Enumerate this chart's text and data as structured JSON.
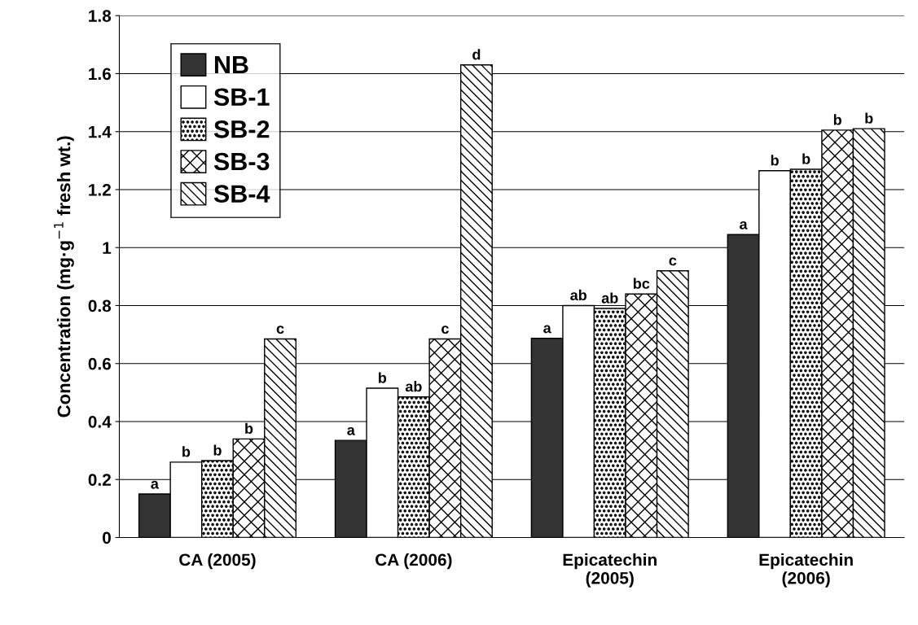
{
  "chart_data": {
    "type": "bar",
    "ylabel": "Concentration (mg·g$^{−1}$ fresh wt.)",
    "categories": [
      "CA (2005)",
      "CA (2006)",
      "Epicatechin\n(2005)",
      "Epicatechin\n(2006)"
    ],
    "series": [
      {
        "name": "NB",
        "color": "#333333",
        "values": [
          0.15,
          0.335,
          0.687,
          1.045
        ],
        "value_labels": [
          "a",
          "a",
          "a",
          "a"
        ]
      },
      {
        "name": "SB-1",
        "color": "#ffffff",
        "values": [
          0.26,
          0.515,
          0.8,
          1.265
        ],
        "value_labels": [
          "b",
          "b",
          "ab",
          "b"
        ]
      },
      {
        "name": "SB-2",
        "color": "#ffffff",
        "values": [
          0.265,
          0.485,
          0.79,
          1.27
        ],
        "value_labels": [
          "b",
          "ab",
          "ab",
          "b"
        ]
      },
      {
        "name": "SB-3",
        "color": "#ffffff",
        "values": [
          0.34,
          0.685,
          0.84,
          1.405
        ],
        "value_labels": [
          "b",
          "c",
          "bc",
          "b"
        ]
      },
      {
        "name": "SB-4",
        "color": "#ffffff",
        "values": [
          0.685,
          1.63,
          0.92,
          1.41
        ],
        "value_labels": [
          "c",
          "d",
          "c",
          "b"
        ]
      }
    ],
    "ylim": [
      0,
      1.8
    ],
    "yticks": [
      0,
      0.2,
      0.4,
      0.6,
      0.8,
      1,
      1.2,
      1.4,
      1.6,
      1.8
    ],
    "grid": "y",
    "legend": "top left"
  }
}
